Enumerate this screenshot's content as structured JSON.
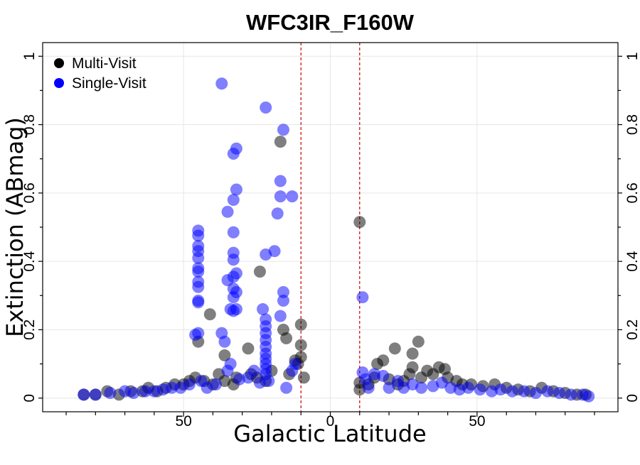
{
  "chart_data": {
    "type": "scatter",
    "title": "WFC3IR_F160W",
    "xlabel": "Galactic Latitude",
    "ylabel": "Extinction (ABmag)",
    "xlim": [
      -98,
      98
    ],
    "ylim": [
      -0.04,
      1.04
    ],
    "x_tick_positions": [
      -50,
      0,
      50
    ],
    "x_tick_labels": [
      "50",
      "0",
      "50"
    ],
    "x_minor_ticks": [
      -90,
      -80,
      -70,
      -60,
      -40,
      -30,
      -20,
      -10,
      10,
      20,
      30,
      40,
      60,
      70,
      80,
      90
    ],
    "y_ticks": [
      0,
      0.2,
      0.4,
      0.6,
      0.8,
      1.0
    ],
    "y_tick_labels": [
      "0",
      "0.2",
      "0.4",
      "0.6",
      "0.8",
      "1"
    ],
    "reference_lines_x": [
      -10,
      10
    ],
    "legend": {
      "position": "top-left",
      "entries": [
        {
          "label": "Multi-Visit",
          "color": "#000000"
        },
        {
          "label": "Single-Visit",
          "color": "#0000ff"
        }
      ]
    },
    "series": [
      {
        "name": "Multi-Visit",
        "color": "#000000",
        "points": [
          {
            "x": -84,
            "y": 0.01
          },
          {
            "x": -80,
            "y": 0.01
          },
          {
            "x": -76,
            "y": 0.02
          },
          {
            "x": -72,
            "y": 0.01
          },
          {
            "x": -68,
            "y": 0.02
          },
          {
            "x": -64,
            "y": 0.02
          },
          {
            "x": -62,
            "y": 0.03
          },
          {
            "x": -59,
            "y": 0.02
          },
          {
            "x": -56,
            "y": 0.03
          },
          {
            "x": -53,
            "y": 0.04
          },
          {
            "x": -50,
            "y": 0.04
          },
          {
            "x": -48,
            "y": 0.05
          },
          {
            "x": -46,
            "y": 0.06
          },
          {
            "x": -45,
            "y": 0.165
          },
          {
            "x": -43,
            "y": 0.05
          },
          {
            "x": -41,
            "y": 0.245
          },
          {
            "x": -40,
            "y": 0.04
          },
          {
            "x": -38,
            "y": 0.07
          },
          {
            "x": -36,
            "y": 0.125
          },
          {
            "x": -36,
            "y": 0.05
          },
          {
            "x": -33,
            "y": 0.04
          },
          {
            "x": -32,
            "y": 0.06
          },
          {
            "x": -28,
            "y": 0.145
          },
          {
            "x": -27,
            "y": 0.07
          },
          {
            "x": -25,
            "y": 0.06
          },
          {
            "x": -24,
            "y": 0.37
          },
          {
            "x": -22,
            "y": 0.05
          },
          {
            "x": -20,
            "y": 0.08
          },
          {
            "x": -17,
            "y": 0.75
          },
          {
            "x": -16,
            "y": 0.2
          },
          {
            "x": -15,
            "y": 0.175
          },
          {
            "x": -14,
            "y": 0.07
          },
          {
            "x": -12,
            "y": 0.11
          },
          {
            "x": -11,
            "y": 0.1
          },
          {
            "x": -10,
            "y": 0.215
          },
          {
            "x": -10,
            "y": 0.155
          },
          {
            "x": -10,
            "y": 0.12
          },
          {
            "x": -9,
            "y": 0.06
          },
          {
            "x": 10,
            "y": 0.515
          },
          {
            "x": 10,
            "y": 0.045
          },
          {
            "x": 10,
            "y": 0.025
          },
          {
            "x": 13,
            "y": 0.04
          },
          {
            "x": 15,
            "y": 0.06
          },
          {
            "x": 16,
            "y": 0.1
          },
          {
            "x": 18,
            "y": 0.11
          },
          {
            "x": 20,
            "y": 0.055
          },
          {
            "x": 22,
            "y": 0.145
          },
          {
            "x": 23,
            "y": 0.04
          },
          {
            "x": 25,
            "y": 0.05
          },
          {
            "x": 27,
            "y": 0.07
          },
          {
            "x": 28,
            "y": 0.13
          },
          {
            "x": 28,
            "y": 0.09
          },
          {
            "x": 30,
            "y": 0.165
          },
          {
            "x": 31,
            "y": 0.06
          },
          {
            "x": 33,
            "y": 0.08
          },
          {
            "x": 35,
            "y": 0.07
          },
          {
            "x": 37,
            "y": 0.09
          },
          {
            "x": 39,
            "y": 0.085
          },
          {
            "x": 40,
            "y": 0.06
          },
          {
            "x": 43,
            "y": 0.05
          },
          {
            "x": 45,
            "y": 0.04
          },
          {
            "x": 48,
            "y": 0.04
          },
          {
            "x": 52,
            "y": 0.035
          },
          {
            "x": 56,
            "y": 0.04
          },
          {
            "x": 60,
            "y": 0.03
          },
          {
            "x": 64,
            "y": 0.025
          },
          {
            "x": 68,
            "y": 0.02
          },
          {
            "x": 72,
            "y": 0.03
          },
          {
            "x": 76,
            "y": 0.02
          },
          {
            "x": 80,
            "y": 0.015
          },
          {
            "x": 84,
            "y": 0.01
          },
          {
            "x": 87,
            "y": 0.01
          }
        ]
      },
      {
        "name": "Single-Visit",
        "color": "#0000ff",
        "points": [
          {
            "x": -84,
            "y": 0.01
          },
          {
            "x": -80,
            "y": 0.01
          },
          {
            "x": -75,
            "y": 0.015
          },
          {
            "x": -70,
            "y": 0.02
          },
          {
            "x": -67,
            "y": 0.015
          },
          {
            "x": -63,
            "y": 0.02
          },
          {
            "x": -60,
            "y": 0.02
          },
          {
            "x": -57,
            "y": 0.025
          },
          {
            "x": -54,
            "y": 0.03
          },
          {
            "x": -51,
            "y": 0.03
          },
          {
            "x": -48,
            "y": 0.04
          },
          {
            "x": -46,
            "y": 0.185
          },
          {
            "x": -45,
            "y": 0.49
          },
          {
            "x": -45,
            "y": 0.475
          },
          {
            "x": -45,
            "y": 0.445
          },
          {
            "x": -45,
            "y": 0.43
          },
          {
            "x": -45,
            "y": 0.41
          },
          {
            "x": -45,
            "y": 0.38
          },
          {
            "x": -45,
            "y": 0.37
          },
          {
            "x": -45,
            "y": 0.34
          },
          {
            "x": -45,
            "y": 0.325
          },
          {
            "x": -45,
            "y": 0.285
          },
          {
            "x": -45,
            "y": 0.28
          },
          {
            "x": -45,
            "y": 0.19
          },
          {
            "x": -44,
            "y": 0.05
          },
          {
            "x": -42,
            "y": 0.03
          },
          {
            "x": -39,
            "y": 0.04
          },
          {
            "x": -37,
            "y": 0.92
          },
          {
            "x": -37,
            "y": 0.19
          },
          {
            "x": -36,
            "y": 0.165
          },
          {
            "x": -35,
            "y": 0.545
          },
          {
            "x": -35,
            "y": 0.345
          },
          {
            "x": -35,
            "y": 0.08
          },
          {
            "x": -34,
            "y": 0.26
          },
          {
            "x": -34,
            "y": 0.1
          },
          {
            "x": -33,
            "y": 0.715
          },
          {
            "x": -33,
            "y": 0.58
          },
          {
            "x": -33,
            "y": 0.485
          },
          {
            "x": -33,
            "y": 0.425
          },
          {
            "x": -33,
            "y": 0.405
          },
          {
            "x": -33,
            "y": 0.355
          },
          {
            "x": -33,
            "y": 0.32
          },
          {
            "x": -33,
            "y": 0.295
          },
          {
            "x": -33,
            "y": 0.255
          },
          {
            "x": -32,
            "y": 0.73
          },
          {
            "x": -32,
            "y": 0.61
          },
          {
            "x": -32,
            "y": 0.365
          },
          {
            "x": -32,
            "y": 0.31
          },
          {
            "x": -32,
            "y": 0.26
          },
          {
            "x": -31,
            "y": 0.055
          },
          {
            "x": -28,
            "y": 0.06
          },
          {
            "x": -26,
            "y": 0.08
          },
          {
            "x": -24,
            "y": 0.045
          },
          {
            "x": -22,
            "y": 0.85
          },
          {
            "x": -22,
            "y": 0.42
          },
          {
            "x": -23,
            "y": 0.26
          },
          {
            "x": -22,
            "y": 0.23
          },
          {
            "x": -22,
            "y": 0.21
          },
          {
            "x": -22,
            "y": 0.19
          },
          {
            "x": -22,
            "y": 0.17
          },
          {
            "x": -22,
            "y": 0.15
          },
          {
            "x": -22,
            "y": 0.13
          },
          {
            "x": -22,
            "y": 0.115
          },
          {
            "x": -22,
            "y": 0.1
          },
          {
            "x": -22,
            "y": 0.085
          },
          {
            "x": -22,
            "y": 0.07
          },
          {
            "x": -21,
            "y": 0.05
          },
          {
            "x": -19,
            "y": 0.43
          },
          {
            "x": -18,
            "y": 0.54
          },
          {
            "x": -17,
            "y": 0.635
          },
          {
            "x": -17,
            "y": 0.59
          },
          {
            "x": -17,
            "y": 0.24
          },
          {
            "x": -16,
            "y": 0.785
          },
          {
            "x": -16,
            "y": 0.31
          },
          {
            "x": -16,
            "y": 0.285
          },
          {
            "x": -13,
            "y": 0.59
          },
          {
            "x": -13,
            "y": 0.08
          },
          {
            "x": -12,
            "y": 0.1
          },
          {
            "x": -15,
            "y": 0.03
          },
          {
            "x": 11,
            "y": 0.295
          },
          {
            "x": 11,
            "y": 0.075
          },
          {
            "x": 12,
            "y": 0.055
          },
          {
            "x": 13,
            "y": 0.03
          },
          {
            "x": 15,
            "y": 0.07
          },
          {
            "x": 18,
            "y": 0.065
          },
          {
            "x": 20,
            "y": 0.03
          },
          {
            "x": 23,
            "y": 0.05
          },
          {
            "x": 25,
            "y": 0.03
          },
          {
            "x": 28,
            "y": 0.04
          },
          {
            "x": 31,
            "y": 0.03
          },
          {
            "x": 35,
            "y": 0.035
          },
          {
            "x": 38,
            "y": 0.045
          },
          {
            "x": 41,
            "y": 0.03
          },
          {
            "x": 44,
            "y": 0.025
          },
          {
            "x": 47,
            "y": 0.03
          },
          {
            "x": 51,
            "y": 0.025
          },
          {
            "x": 55,
            "y": 0.02
          },
          {
            "x": 58,
            "y": 0.025
          },
          {
            "x": 62,
            "y": 0.02
          },
          {
            "x": 66,
            "y": 0.02
          },
          {
            "x": 70,
            "y": 0.015
          },
          {
            "x": 74,
            "y": 0.02
          },
          {
            "x": 78,
            "y": 0.015
          },
          {
            "x": 82,
            "y": 0.01
          },
          {
            "x": 86,
            "y": 0.01
          },
          {
            "x": 88,
            "y": 0.005
          }
        ]
      }
    ]
  }
}
